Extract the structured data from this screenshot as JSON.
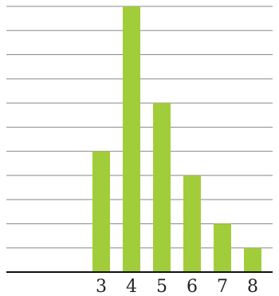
{
  "chart_data": {
    "type": "bar",
    "categories": [
      "",
      "",
      "3",
      "4",
      "5",
      "6",
      "7",
      "8"
    ],
    "values": [
      0,
      0,
      5,
      11,
      7,
      4,
      2,
      1
    ],
    "ylim": [
      0,
      11
    ],
    "grid": true,
    "title": "",
    "xlabel": "",
    "ylabel": "",
    "colors": {
      "bar": "#a2cd3a",
      "grid": "#888888",
      "axis": "#111111"
    }
  }
}
